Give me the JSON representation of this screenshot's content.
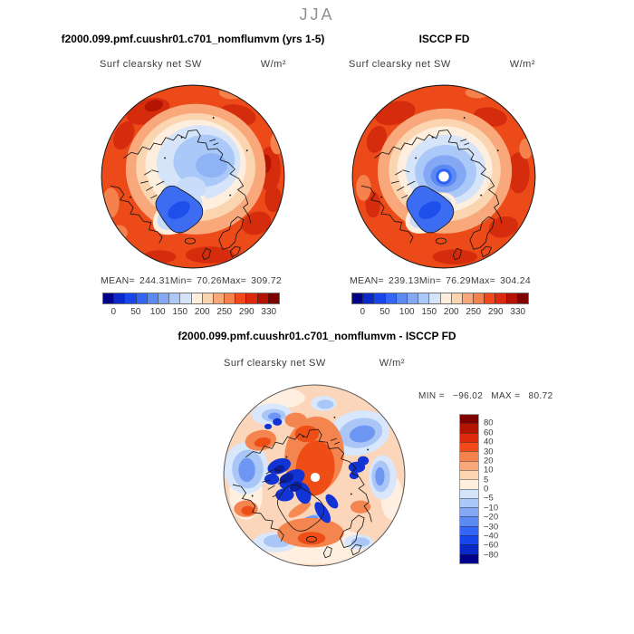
{
  "header": {
    "season": "JJA"
  },
  "panels": [
    {
      "title": "f2000.099.pmf.cuushr01.c701_nomflumvm (yrs 1-5)",
      "field_label": "Surf clearsky net SW",
      "units": "W/m²",
      "stats": {
        "mean_label": "MEAN=",
        "mean": "244.31",
        "min_label": "Min=",
        "min": "70.26",
        "max_label": "Max=",
        "max": "309.72"
      },
      "colorbar": {
        "labels": [
          "0",
          "50",
          "100",
          "150",
          "200",
          "250",
          "290",
          "330"
        ]
      }
    },
    {
      "title": "ISCCP FD",
      "field_label": "Surf clearsky net SW",
      "units": "W/m²",
      "stats": {
        "mean_label": "MEAN=",
        "mean": "239.13",
        "min_label": "Min=",
        "min": "76.29",
        "max_label": "Max=",
        "max": "304.24"
      },
      "colorbar": {
        "labels": [
          "0",
          "50",
          "100",
          "150",
          "200",
          "250",
          "290",
          "330"
        ]
      }
    },
    {
      "title": "f2000.099.pmf.cuushr01.c701_nomflumvm - ISCCP FD",
      "field_label": "Surf clearsky net SW",
      "units": "W/m²",
      "stats": {
        "min_label": "MIN =",
        "min": "−96.02",
        "max_label": "MAX =",
        "max": "80.72"
      },
      "colorbar": {
        "labels": [
          "80",
          "60",
          "40",
          "30",
          "20",
          "10",
          "5",
          "0",
          "−5",
          "−10",
          "−20",
          "−30",
          "−40",
          "−60",
          "−80"
        ]
      }
    }
  ],
  "palette": {
    "blue_to_red": [
      "#00008b",
      "#0b28c8",
      "#1846ea",
      "#3366f5",
      "#5c8af2",
      "#85a8f5",
      "#aac8f8",
      "#d6e4fa",
      "#fdeedd",
      "#fbd4b0",
      "#f9a87c",
      "#f5824d",
      "#f2481a",
      "#de2a0c",
      "#b51402",
      "#800000"
    ]
  },
  "chart_data": [
    {
      "type": "heatmap",
      "projection": "polar-stereographic-north",
      "season": "JJA",
      "title": "f2000.099.pmf.cuushr01.c701_nomflumvm (yrs 1-5)",
      "variable": "Surf clearsky net SW",
      "units": "W/m²",
      "mean": 244.31,
      "min": 70.26,
      "max": 309.72,
      "colorbar_ticks": [
        0,
        50,
        100,
        150,
        200,
        250,
        290,
        330
      ],
      "n_color_boxes": 16,
      "legend_position": "below",
      "description": "Mostly high values (red, ~250-300) over land and sub-polar ocean; low values (blue, <150) over central Arctic sea ice and Greenland."
    },
    {
      "type": "heatmap",
      "projection": "polar-stereographic-north",
      "season": "JJA",
      "title": "ISCCP FD",
      "variable": "Surf clearsky net SW",
      "units": "W/m²",
      "mean": 239.13,
      "min": 76.29,
      "max": 304.24,
      "colorbar_ticks": [
        0,
        50,
        100,
        150,
        200,
        250,
        290,
        330
      ],
      "n_color_boxes": 16,
      "legend_position": "below",
      "description": "Similar pattern with compact low-value core around the pole and a data-void white dot at the pole."
    },
    {
      "type": "heatmap",
      "projection": "polar-stereographic-north",
      "season": "JJA",
      "title": "f2000.099.pmf.cuushr01.c701_nomflumvm - ISCCP FD",
      "variable": "Surf clearsky net SW",
      "units": "W/m²",
      "min": -96.02,
      "max": 80.72,
      "colorbar_ticks": [
        80,
        60,
        40,
        30,
        20,
        10,
        5,
        0,
        -5,
        -10,
        -20,
        -30,
        -40,
        -60,
        -80
      ],
      "n_color_boxes": 16,
      "legend_position": "right",
      "description": "Difference map: positive (red/orange) near the pole and northern Eurasia/Scandinavia, strong negative (dark blue) over the Canadian Archipelago and Greenland margins, scattered weak negatives elsewhere."
    }
  ]
}
